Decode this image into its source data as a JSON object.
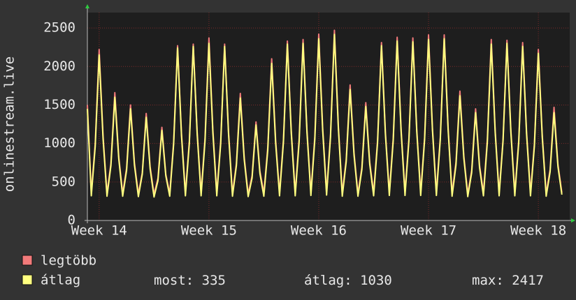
{
  "chart_data": {
    "type": "line",
    "y_label": "onlinestream.live",
    "categories": [
      null,
      null,
      null,
      "Week 14",
      null,
      null,
      null,
      null,
      null,
      null,
      null,
      null,
      null,
      null,
      null,
      null,
      null,
      null,
      null,
      null,
      null,
      null,
      null,
      null,
      null,
      null,
      null,
      null,
      null,
      null,
      null,
      "Week 15",
      null,
      null,
      null,
      null,
      null,
      null,
      null,
      null,
      null,
      null,
      null,
      null,
      null,
      null,
      null,
      null,
      null,
      null,
      null,
      null,
      null,
      null,
      null,
      null,
      null,
      null,
      null,
      "Week 16",
      null,
      null,
      null,
      null,
      null,
      null,
      null,
      null,
      null,
      null,
      null,
      null,
      null,
      null,
      null,
      null,
      null,
      null,
      null,
      null,
      null,
      null,
      null,
      null,
      null,
      null,
      null,
      "Week 17",
      null,
      null,
      null,
      null,
      null,
      null,
      null,
      null,
      null,
      null,
      null,
      null,
      null,
      null,
      null,
      null,
      null,
      null,
      null,
      null,
      null,
      null,
      null,
      null,
      null,
      null,
      null,
      "Week 18",
      null,
      null,
      null,
      null,
      null,
      null
    ],
    "series": [
      {
        "name": "legtöbb",
        "color": "#f27a7a",
        "values": [
          1500,
          360,
          1000,
          2220,
          1100,
          350,
          740,
          1660,
          830,
          350,
          680,
          1500,
          750,
          345,
          620,
          1390,
          700,
          340,
          550,
          1210,
          600,
          350,
          1020,
          2270,
          1130,
          360,
          1030,
          2290,
          1150,
          360,
          1070,
          2370,
          1180,
          360,
          1030,
          2290,
          1150,
          350,
          740,
          1650,
          820,
          345,
          580,
          1280,
          640,
          355,
          950,
          2100,
          1050,
          360,
          1050,
          2330,
          1160,
          360,
          1060,
          2350,
          1170,
          365,
          1090,
          2420,
          1210,
          370,
          1110,
          2470,
          1230,
          355,
          790,
          1760,
          880,
          350,
          690,
          1530,
          760,
          360,
          1040,
          2310,
          1150,
          365,
          1070,
          2380,
          1190,
          365,
          1070,
          2370,
          1180,
          365,
          1080,
          2410,
          1200,
          365,
          1080,
          2410,
          1200,
          350,
          760,
          1680,
          840,
          345,
          650,
          1450,
          720,
          360,
          1060,
          2350,
          1170,
          360,
          1050,
          2340,
          1170,
          360,
          1040,
          2310,
          1150,
          360,
          1000,
          2220,
          1110,
          350,
          660,
          1470,
          730,
          360
        ]
      },
      {
        "name": "átlag",
        "color": "#ffff80",
        "values": [
          1450,
          320,
          960,
          2150,
          1060,
          315,
          710,
          1600,
          800,
          315,
          650,
          1450,
          720,
          310,
          600,
          1340,
          670,
          305,
          520,
          1170,
          580,
          315,
          990,
          2240,
          1100,
          320,
          1000,
          2260,
          1120,
          320,
          1030,
          2300,
          1140,
          320,
          1000,
          2260,
          1120,
          315,
          710,
          1590,
          790,
          310,
          550,
          1240,
          610,
          315,
          910,
          2040,
          1010,
          320,
          1020,
          2290,
          1130,
          320,
          1020,
          2300,
          1140,
          325,
          1050,
          2360,
          1170,
          330,
          1080,
          2417,
          1200,
          315,
          760,
          1700,
          850,
          315,
          660,
          1480,
          730,
          320,
          1010,
          2270,
          1120,
          325,
          1040,
          2330,
          1160,
          325,
          1040,
          2320,
          1150,
          325,
          1050,
          2350,
          1170,
          325,
          1050,
          2360,
          1170,
          315,
          720,
          1620,
          810,
          310,
          620,
          1400,
          690,
          320,
          1020,
          2290,
          1140,
          320,
          1030,
          2300,
          1140,
          320,
          1010,
          2260,
          1120,
          320,
          970,
          2170,
          1080,
          315,
          630,
          1400,
          700,
          335
        ]
      }
    ],
    "stats": [
      {
        "label": "most:",
        "value": 335
      },
      {
        "label": "átlag:",
        "value": 1030
      },
      {
        "label": "max:",
        "value": 2417
      }
    ],
    "ylim": [
      0,
      2700
    ],
    "yticks": [
      0,
      500,
      1000,
      1500,
      2000,
      2500
    ],
    "grid": true
  }
}
